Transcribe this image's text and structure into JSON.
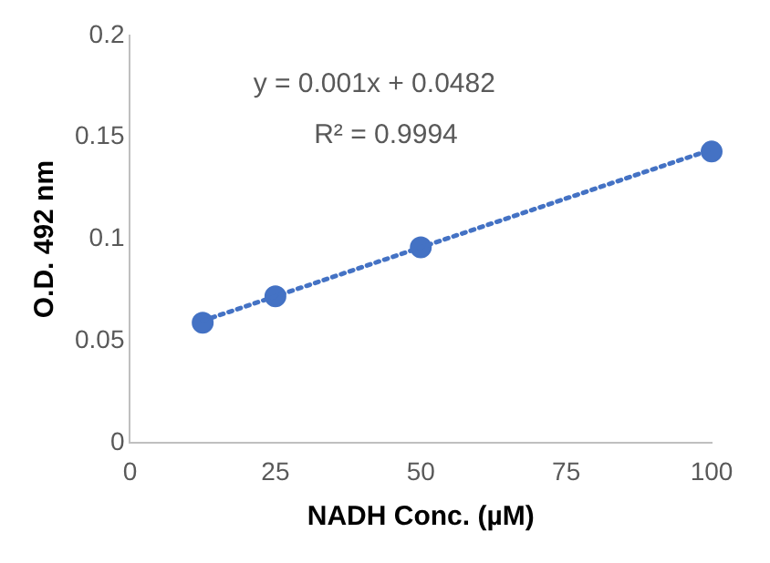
{
  "chart_data": {
    "type": "scatter",
    "xlabel": "NADH Conc. (µM)",
    "ylabel": "O.D. 492 nm",
    "annotations": [
      "y = 0.001x + 0.0482",
      "R² = 0.9994"
    ],
    "series": [
      {
        "color": "#4472c4",
        "x": [
          12.5,
          25,
          50,
          100
        ],
        "values": [
          0.059,
          0.072,
          0.096,
          0.143
        ],
        "marker": "circle"
      },
      {
        "type": "line",
        "color": "#4472c4",
        "x": [
          12.5,
          100
        ],
        "values": [
          0.06,
          0.144
        ],
        "marker": "none",
        "line_style": "dotted"
      }
    ],
    "xlim": [
      0,
      100
    ],
    "xticks": [
      0,
      25,
      50,
      75,
      100
    ],
    "ylim": [
      0,
      0.2
    ],
    "yticks": [
      0,
      0.05,
      0.1,
      0.15,
      0.2
    ],
    "grid": false,
    "legend": false
  }
}
